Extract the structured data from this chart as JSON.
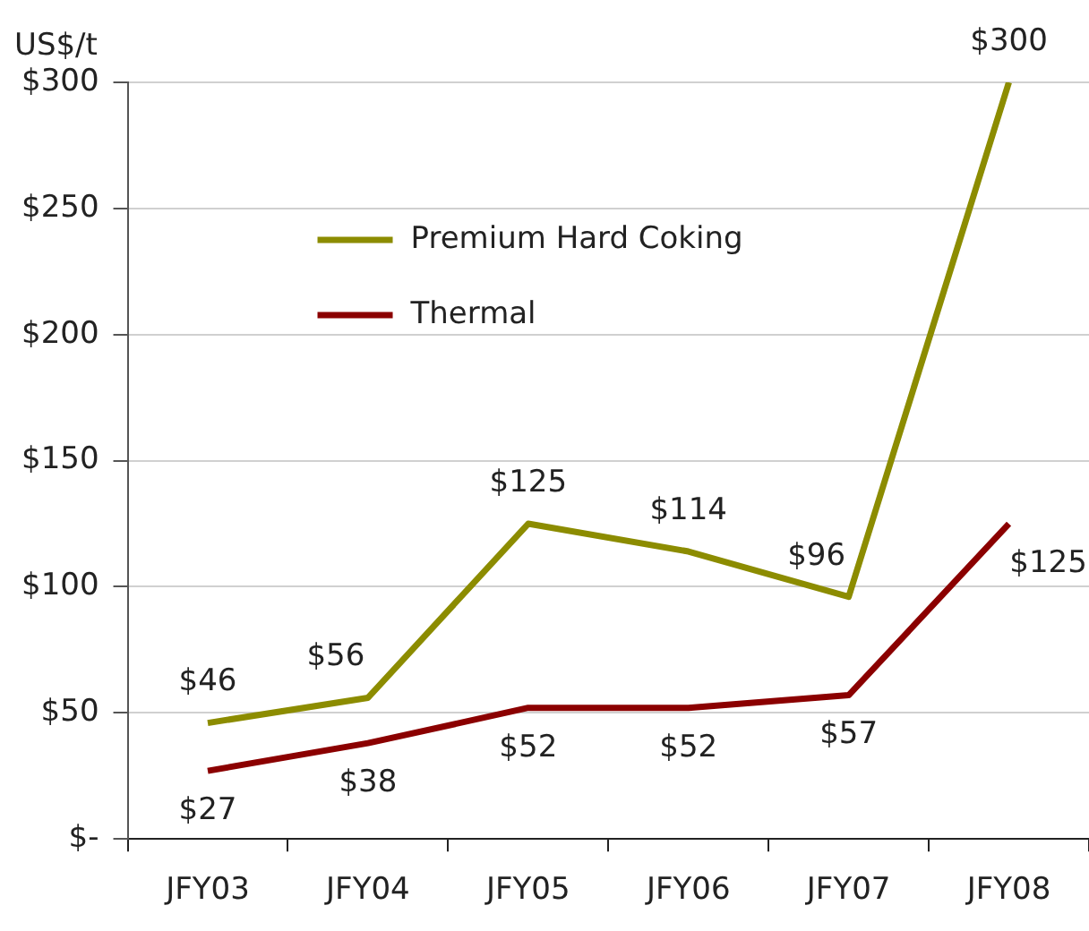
{
  "chart_data": {
    "type": "line",
    "ylabel": "US$/t",
    "categories": [
      "JFY03",
      "JFY04",
      "JFY05",
      "JFY06",
      "JFY07",
      "JFY08"
    ],
    "series": [
      {
        "name": "Premium Hard Coking",
        "color": "#8c8c00",
        "values": [
          46,
          56,
          125,
          114,
          96,
          300
        ],
        "value_labels": [
          "$46",
          "$56",
          "$125",
          "$114",
          "$96",
          "$300"
        ]
      },
      {
        "name": "Thermal",
        "color": "#8b0000",
        "values": [
          27,
          38,
          52,
          52,
          57,
          125
        ],
        "value_labels": [
          "$27",
          "$38",
          "$52",
          "$52",
          "$57",
          "$125"
        ]
      }
    ],
    "ylim": [
      0,
      300
    ],
    "yticks": [
      {
        "value": 0,
        "label": "$-"
      },
      {
        "value": 50,
        "label": "$50"
      },
      {
        "value": 100,
        "label": "$100"
      },
      {
        "value": 150,
        "label": "$150"
      },
      {
        "value": 200,
        "label": "$200"
      },
      {
        "value": 250,
        "label": "$250"
      },
      {
        "value": 300,
        "label": "$300"
      }
    ],
    "grid": "y",
    "legend": "top left",
    "marker": "none",
    "line_style": "solid"
  }
}
